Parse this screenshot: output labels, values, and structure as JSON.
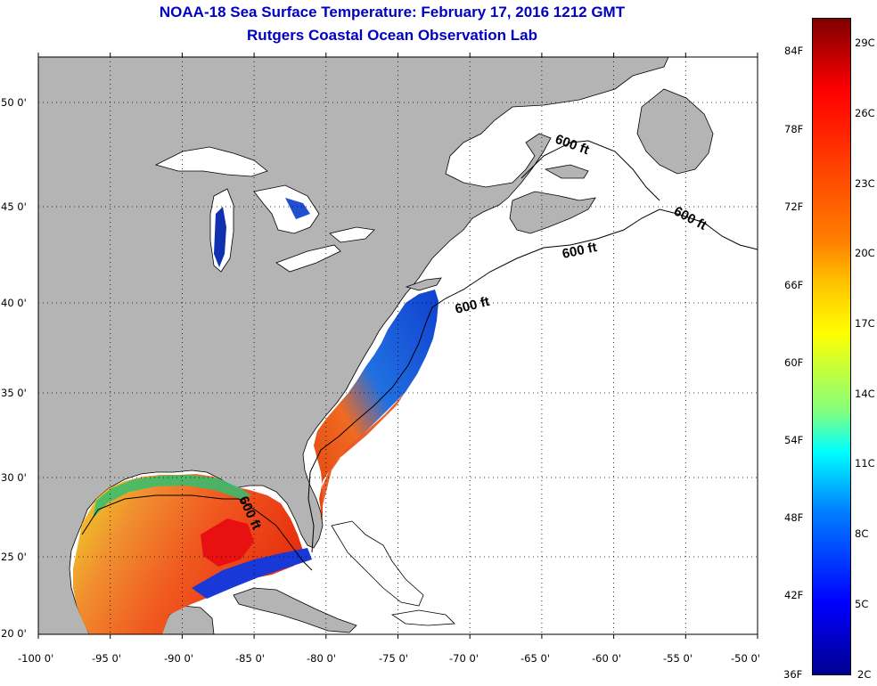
{
  "title": "NOAA-18 Sea Surface Temperature:  February 17, 2016 1212 GMT",
  "subtitle": "Rutgers Coastal Ocean Observation Lab",
  "latitude_labels": [
    "50 0'",
    "45 0'",
    "40 0'",
    "35 0'",
    "30 0'",
    "25 0'",
    "20 0'"
  ],
  "latitude_values": [
    50,
    45,
    40,
    35,
    30,
    25,
    20
  ],
  "longitude_labels": [
    "-100 0'",
    "-95 0'",
    "-90 0'",
    "-85 0'",
    "-80 0'",
    "-75 0'",
    "-70 0'",
    "-65 0'",
    "-60 0'",
    "-55 0'",
    "-50 0'"
  ],
  "longitude_values": [
    -100,
    -95,
    -90,
    -85,
    -80,
    -75,
    -70,
    -65,
    -60,
    -55,
    -50
  ],
  "contour_label": "600 ft",
  "contour_label_count": 5,
  "colorbar": {
    "fahrenheit_labels": [
      "84F",
      "78F",
      "72F",
      "66F",
      "60F",
      "54F",
      "48F",
      "42F",
      "36F"
    ],
    "celsius_labels": [
      "29C",
      "26C",
      "23C",
      "20C",
      "17C",
      "14C",
      "11C",
      "8C",
      "5C",
      "2C"
    ],
    "range_celsius": [
      2,
      30
    ],
    "colormap": "jet"
  },
  "colors": {
    "title": "#0000c0",
    "land": "#b4b4b4",
    "ocean_no_data": "#ffffff",
    "grid": "#000000"
  }
}
